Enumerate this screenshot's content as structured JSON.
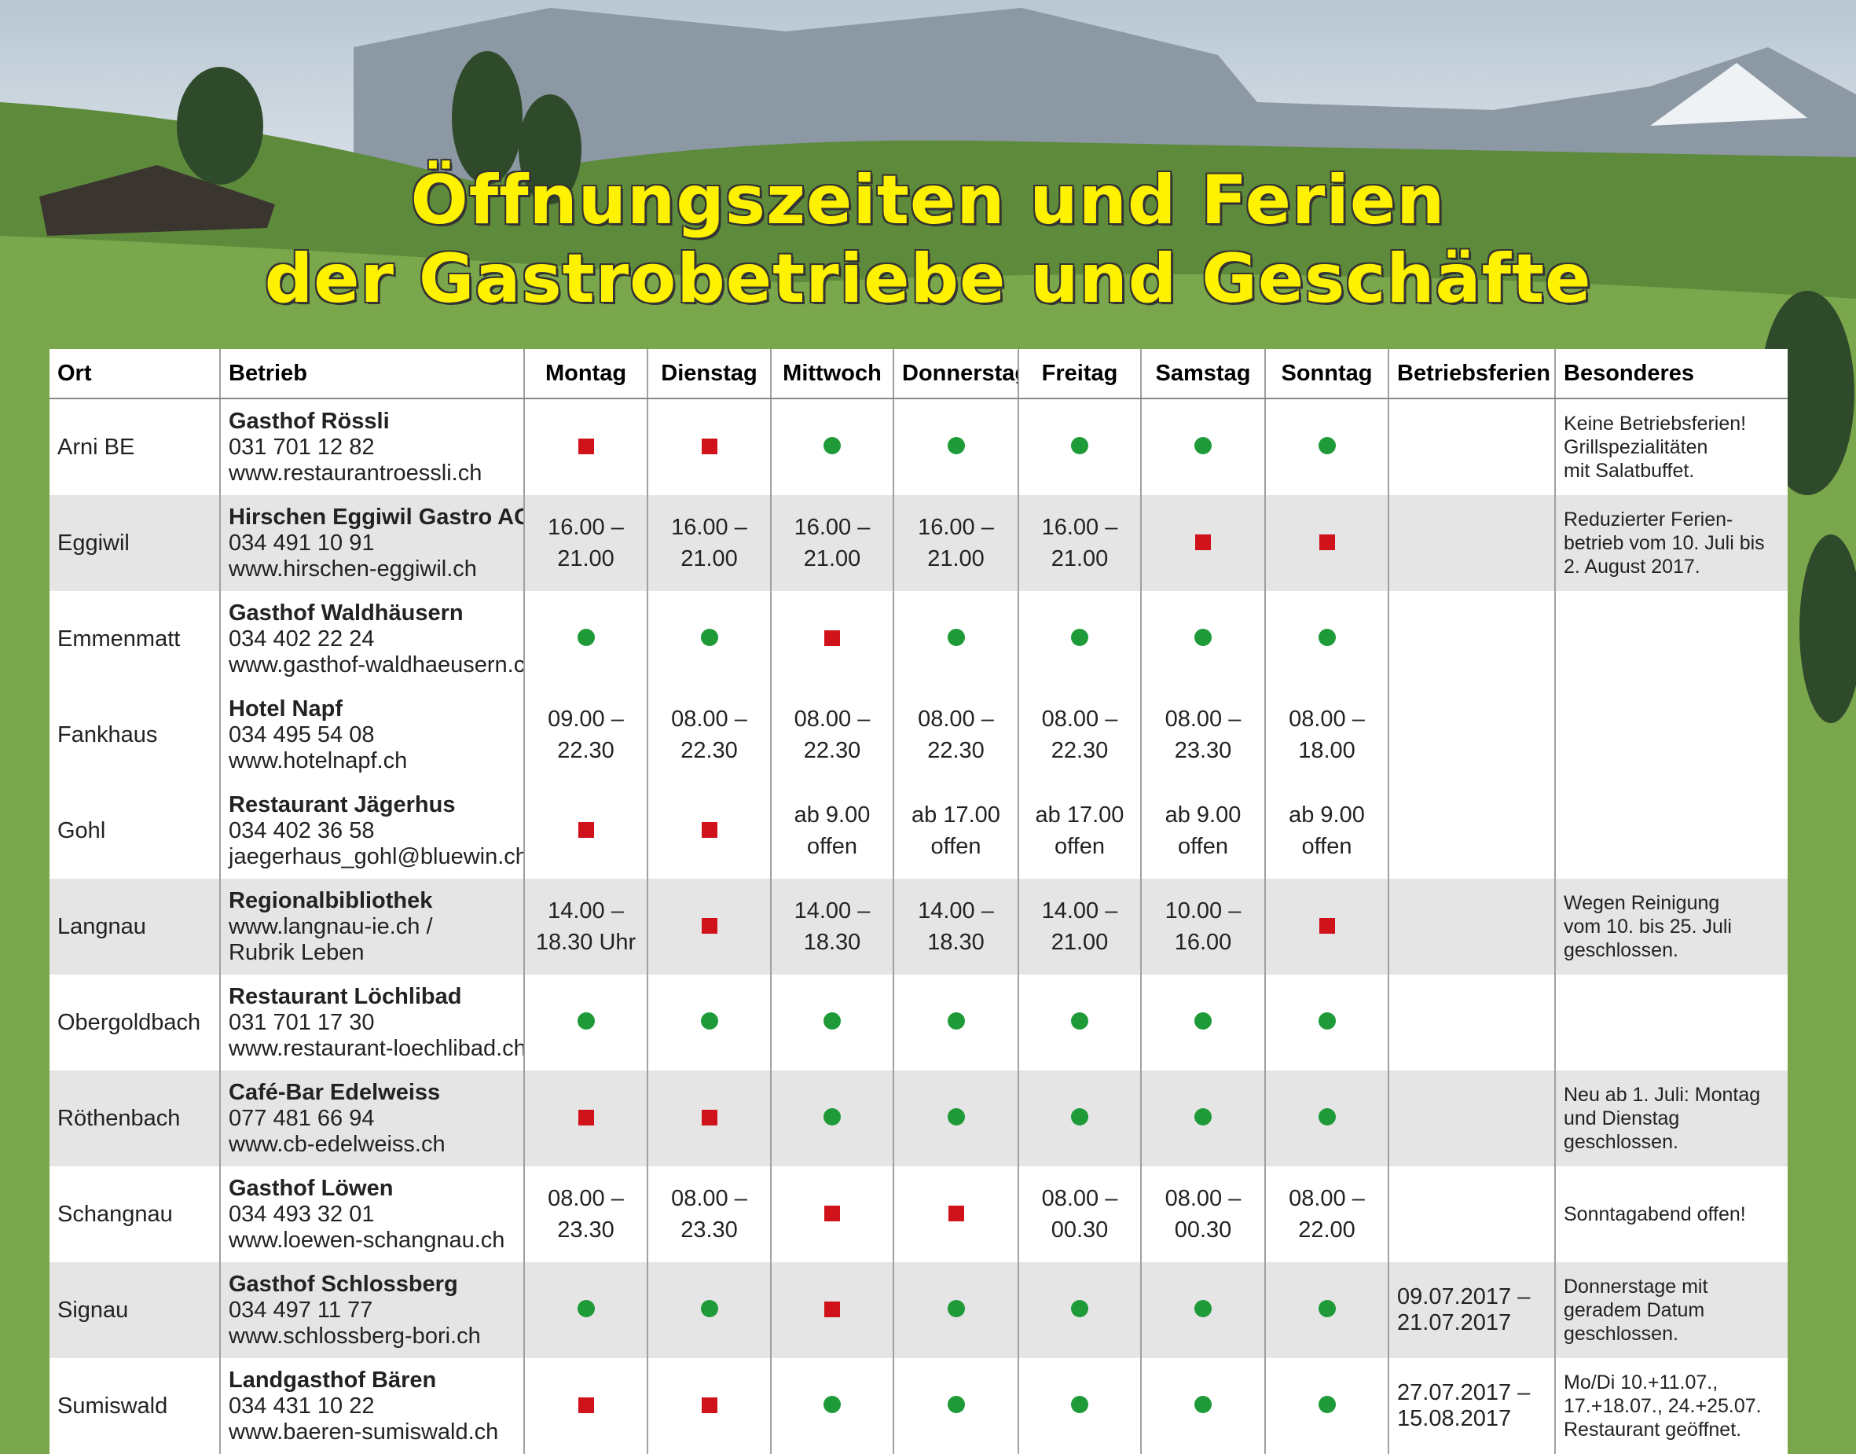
{
  "title": [
    "Öffnungszeiten und Ferien",
    "der Gastrobetriebe und Geschäfte"
  ],
  "table": {
    "header": [
      "Ort",
      "Betrieb",
      "Montag",
      "Dienstag",
      "Mittwoch",
      "Donnerstag",
      "Freitag",
      "Samstag",
      "Sonntag",
      "Betriebsferien",
      "Besonderes"
    ],
    "rows": [
      {
        "ort": "Arni BE",
        "betrieb": [
          "Gasthof Rössli",
          "031 701 12 82",
          "www.restaurantroessli.ch"
        ],
        "days": [
          false,
          false,
          true,
          true,
          true,
          true,
          true
        ],
        "ferien": null,
        "besonderes": [
          "Keine Betriebsferien!",
          "Grillspezialitäten",
          "mit Salatbuffet."
        ]
      },
      {
        "ort": "Eggiwil",
        "betrieb": [
          "Hirschen Eggiwil Gastro AG",
          "034 491 10 91",
          "www.hirschen-eggiwil.ch"
        ],
        "days": [
          [
            "16.00 –",
            "21.00"
          ],
          [
            "16.00 –",
            "21.00"
          ],
          [
            "16.00 –",
            "21.00"
          ],
          [
            "16.00 –",
            "21.00"
          ],
          [
            "16.00 –",
            "21.00"
          ],
          false,
          false
        ],
        "ferien": null,
        "besonderes": [
          "Reduzierter Ferien-",
          "betrieb vom 10. Juli bis",
          "2. August 2017."
        ]
      },
      {
        "ort": "Emmenmatt",
        "betrieb": [
          "Gasthof Waldhäusern",
          "034 402 22 24",
          "www.gasthof-waldhaeusern.ch"
        ],
        "days": [
          true,
          true,
          false,
          true,
          true,
          true,
          true
        ],
        "ferien": null,
        "besonderes": null
      },
      {
        "ort": "Fankhaus",
        "betrieb": [
          "Hotel Napf",
          "034 495 54 08",
          "www.hotelnapf.ch"
        ],
        "days": [
          [
            "09.00 –",
            "22.30"
          ],
          [
            "08.00 –",
            "22.30"
          ],
          [
            "08.00 –",
            "22.30"
          ],
          [
            "08.00 –",
            "22.30"
          ],
          [
            "08.00 –",
            "22.30"
          ],
          [
            "08.00 –",
            "23.30"
          ],
          [
            "08.00 –",
            "18.00"
          ]
        ],
        "ferien": null,
        "besonderes": null
      },
      {
        "ort": "Gohl",
        "betrieb": [
          "Restaurant Jägerhus",
          "034 402 36 58",
          "jaegerhaus_gohl@bluewin.ch"
        ],
        "days": [
          false,
          false,
          [
            "ab 9.00",
            "offen"
          ],
          [
            "ab 17.00",
            "offen"
          ],
          [
            "ab 17.00",
            "offen"
          ],
          [
            "ab 9.00",
            "offen"
          ],
          [
            "ab 9.00",
            "offen"
          ]
        ],
        "ferien": null,
        "besonderes": null
      },
      {
        "ort": "Langnau",
        "betrieb": [
          "Regionalbibliothek",
          "www.langnau-ie.ch /",
          "Rubrik Leben"
        ],
        "days": [
          [
            "14.00 –",
            "18.30 Uhr"
          ],
          false,
          [
            "14.00 –",
            "18.30"
          ],
          [
            "14.00 –",
            "18.30"
          ],
          [
            "14.00 –",
            "21.00"
          ],
          [
            "10.00 –",
            "16.00"
          ],
          false
        ],
        "ferien": null,
        "besonderes": [
          "Wegen Reinigung",
          "vom 10. bis 25. Juli",
          "geschlossen."
        ]
      },
      {
        "ort": "Obergoldbach",
        "betrieb": [
          "Restaurant Löchlibad",
          "031 701 17 30",
          "www.restaurant-loechlibad.ch"
        ],
        "days": [
          true,
          true,
          true,
          true,
          true,
          true,
          true
        ],
        "ferien": null,
        "besonderes": null
      },
      {
        "ort": "Röthenbach",
        "betrieb": [
          "Café-Bar Edelweiss",
          "077 481 66 94",
          "www.cb-edelweiss.ch"
        ],
        "days": [
          false,
          false,
          true,
          true,
          true,
          true,
          true
        ],
        "ferien": null,
        "besonderes": [
          "Neu ab 1. Juli: Montag",
          "und Dienstag",
          "geschlossen."
        ]
      },
      {
        "ort": "Schangnau",
        "betrieb": [
          "Gasthof Löwen",
          "034 493 32 01",
          "www.loewen-schangnau.ch"
        ],
        "days": [
          [
            "08.00 –",
            "23.30"
          ],
          [
            "08.00 –",
            "23.30"
          ],
          false,
          false,
          [
            "08.00 –",
            "00.30"
          ],
          [
            "08.00 –",
            "00.30"
          ],
          [
            "08.00 –",
            "22.00"
          ]
        ],
        "ferien": null,
        "besonderes": [
          "Sonntagabend offen!"
        ]
      },
      {
        "ort": "Signau",
        "betrieb": [
          "Gasthof Schlossberg",
          "034 497 11 77",
          "www.schlossberg-bori.ch"
        ],
        "days": [
          true,
          true,
          false,
          true,
          true,
          true,
          true
        ],
        "ferien": [
          "09.07.2017 –",
          "21.07.2017"
        ],
        "besonderes": [
          "Donnerstage mit",
          "geradem Datum",
          "geschlossen."
        ]
      },
      {
        "ort": "Sumiswald",
        "betrieb": [
          "Landgasthof Bären",
          "034 431 10 22",
          "www.baeren-sumiswald.ch"
        ],
        "days": [
          false,
          false,
          true,
          true,
          true,
          true,
          true
        ],
        "ferien": [
          "27.07.2017 –",
          "15.08.2017"
        ],
        "besonderes": [
          "Mo/Di 10.+11.07.,",
          "17.+18.07., 24.+25.07.",
          "Restaurant geöffnet."
        ]
      }
    ]
  }
}
